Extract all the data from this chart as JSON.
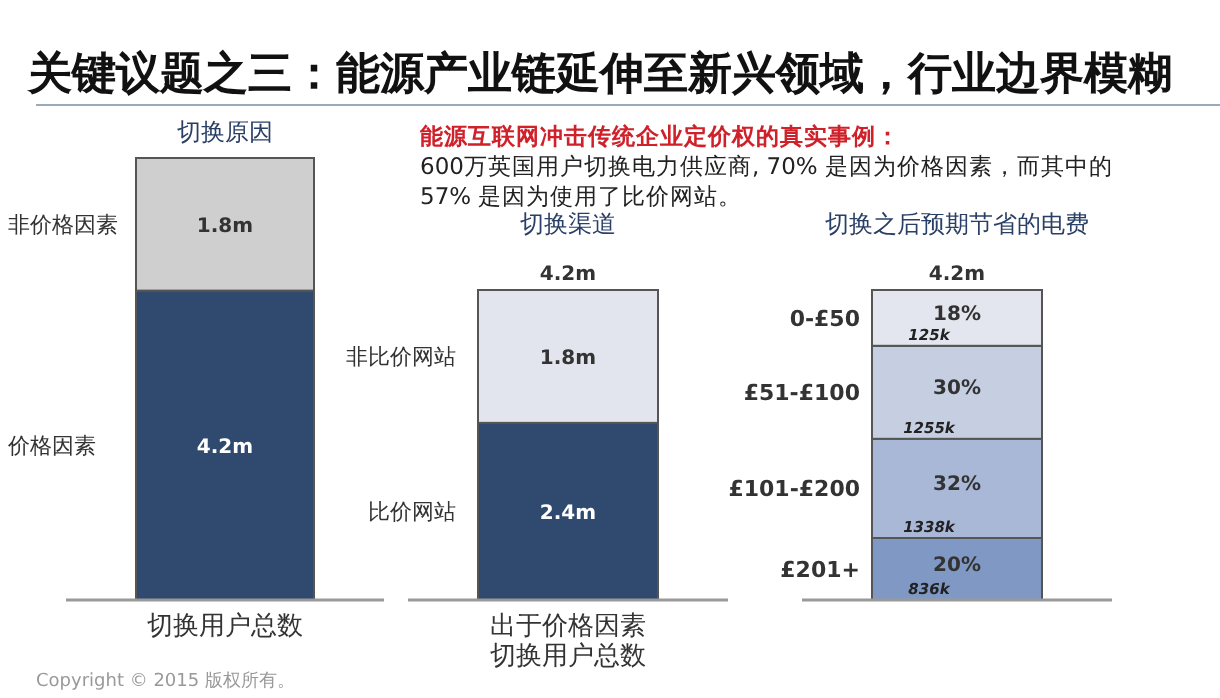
{
  "chart_data": [
    {
      "type": "other",
      "title": "关键议题之三：能源产业链延伸至新兴领域，行业边界模糊",
      "subtitle": "能源互联网冲击传统企业定价权的真实事例：",
      "annotations": [
        "600万英国用户切换电力供应商, 70% 是因为价格因素，而其中的57% 是因为使用了比价网站。"
      ]
    },
    {
      "type": "bar",
      "stacked": true,
      "title": "切换原因",
      "categories": [
        "切换用户总数"
      ],
      "tick_labels": false,
      "legend": false,
      "series": [
        {
          "name": "价格因素",
          "color": "#2f4a6e",
          "values": [
            4.2
          ],
          "value_labels": [
            "4.2m"
          ]
        },
        {
          "name": "非价格因素",
          "color": "#cfcfcf",
          "values": [
            1.8
          ],
          "value_labels": [
            "1.8m"
          ]
        }
      ],
      "annotations": [
        "Copyright © 2015 版权所有。"
      ]
    },
    {
      "type": "bar",
      "stacked": true,
      "title": "切换渠道",
      "categories": [
        "出于价格因素切换用户总数"
      ],
      "tick_labels": false,
      "legend": false,
      "totals": [
        "4.2m"
      ],
      "series": [
        {
          "name": "比价网站",
          "color": "#2f4a6e",
          "values": [
            2.4
          ],
          "value_labels": [
            "2.4m"
          ]
        },
        {
          "name": "非比价网站",
          "color": "#e3e5ee",
          "values": [
            1.8
          ],
          "value_labels": [
            "1.8m"
          ]
        }
      ]
    },
    {
      "type": "bar",
      "stacked": true,
      "title": "切换之后预期节省的电费",
      "categories": [
        null
      ],
      "ylim": [
        0,
        100
      ],
      "tick_labels": false,
      "legend": false,
      "series": [
        {
          "name": "£201+",
          "color": "#7f99c4",
          "values": [
            20
          ],
          "value_labels": [
            "20%"
          ]
        },
        {
          "name": "£101-£200",
          "color": "#a9b8d6",
          "values": [
            32
          ],
          "value_labels": [
            "32%"
          ]
        },
        {
          "name": "£51-£100",
          "color": "#c6cfe2",
          "values": [
            30
          ],
          "value_labels": [
            "30%"
          ]
        },
        {
          "name": "0-£50",
          "color": "#e3e6ef",
          "values": [
            18
          ],
          "value_labels": [
            "18%"
          ]
        }
      ],
      "annotations": [
        "4.2m",
        "836k",
        "1338k",
        "1255k",
        "125k"
      ]
    }
  ]
}
